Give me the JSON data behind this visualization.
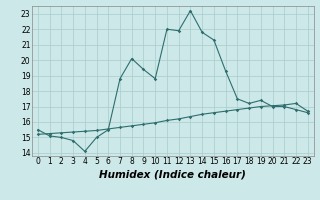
{
  "xlabel": "Humidex (Indice chaleur)",
  "bg_color": "#cde8e8",
  "grid_color": "#aacccc",
  "line_color": "#2e6e6e",
  "x_values": [
    0,
    1,
    2,
    3,
    4,
    5,
    6,
    7,
    8,
    9,
    10,
    11,
    12,
    13,
    14,
    15,
    16,
    17,
    18,
    19,
    20,
    21,
    22,
    23
  ],
  "y1_values": [
    15.5,
    15.1,
    15.0,
    14.8,
    14.1,
    15.0,
    15.5,
    18.8,
    20.1,
    19.4,
    18.8,
    22.0,
    21.9,
    23.2,
    21.8,
    21.3,
    19.3,
    17.5,
    17.2,
    17.4,
    17.0,
    17.0,
    16.8,
    16.6
  ],
  "y2_values": [
    15.2,
    15.25,
    15.3,
    15.35,
    15.4,
    15.45,
    15.55,
    15.65,
    15.75,
    15.85,
    15.95,
    16.1,
    16.2,
    16.35,
    16.5,
    16.6,
    16.7,
    16.8,
    16.9,
    17.0,
    17.05,
    17.1,
    17.2,
    16.7
  ],
  "ylim": [
    13.8,
    23.5
  ],
  "xlim": [
    -0.5,
    23.5
  ],
  "yticks": [
    14,
    15,
    16,
    17,
    18,
    19,
    20,
    21,
    22,
    23
  ],
  "xticks": [
    0,
    1,
    2,
    3,
    4,
    5,
    6,
    7,
    8,
    9,
    10,
    11,
    12,
    13,
    14,
    15,
    16,
    17,
    18,
    19,
    20,
    21,
    22,
    23
  ],
  "tick_fontsize": 5.5,
  "xlabel_fontsize": 7.5
}
